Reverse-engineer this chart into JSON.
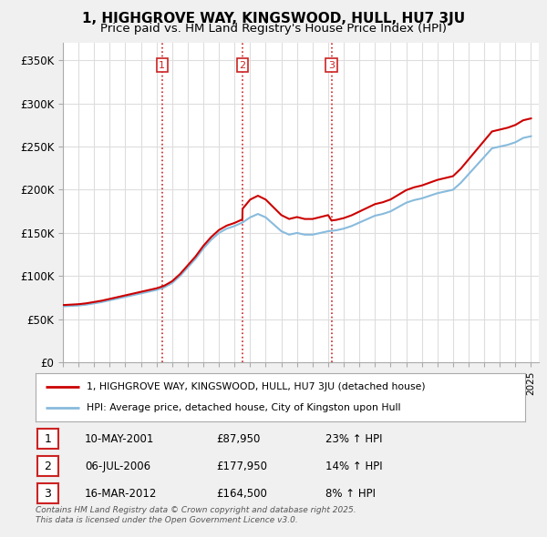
{
  "title": "1, HIGHGROVE WAY, KINGSWOOD, HULL, HU7 3JU",
  "subtitle": "Price paid vs. HM Land Registry's House Price Index (HPI)",
  "ylim": [
    0,
    370000
  ],
  "yticks": [
    0,
    50000,
    100000,
    150000,
    200000,
    250000,
    300000,
    350000
  ],
  "ytick_labels": [
    "£0",
    "£50K",
    "£100K",
    "£150K",
    "£200K",
    "£250K",
    "£300K",
    "£350K"
  ],
  "background_color": "#f0f0f0",
  "plot_bg_color": "#ffffff",
  "grid_color": "#dddddd",
  "sale_color": "#cc0000",
  "hpi_color": "#88bbdd",
  "sale_labels": [
    "1",
    "2",
    "3"
  ],
  "sale_label_color": "#cc2222",
  "legend_line1": "1, HIGHGROVE WAY, KINGSWOOD, HULL, HU7 3JU (detached house)",
  "legend_line2": "HPI: Average price, detached house, City of Kingston upon Hull",
  "footer": "Contains HM Land Registry data © Crown copyright and database right 2025.\nThis data is licensed under the Open Government Licence v3.0.",
  "vline_color": "#cc2222",
  "title_fontsize": 11,
  "subtitle_fontsize": 9.5,
  "table_rows": [
    [
      "1",
      "10-MAY-2001",
      "£87,950",
      "23% ↑ HPI"
    ],
    [
      "2",
      "06-JUL-2006",
      "£177,950",
      "14% ↑ HPI"
    ],
    [
      "3",
      "16-MAR-2012",
      "£164,500",
      "8% ↑ HPI"
    ]
  ]
}
